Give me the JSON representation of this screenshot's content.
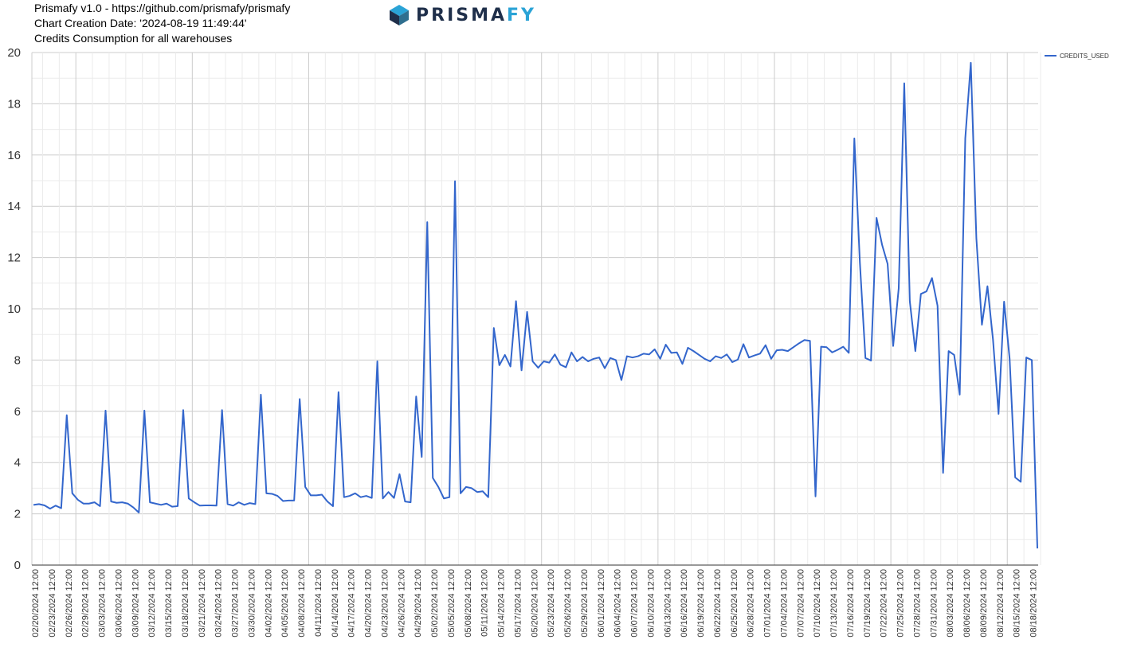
{
  "header": {
    "line1": "Prismafy v1.0 - https://github.com/prismafy/prismafy",
    "line2": "Chart Creation Date: '2024-08-19 11:49:44'",
    "line3": "Credits Consumption for all warehouses"
  },
  "logo": {
    "text_part1": "PRISMA",
    "text_part2": "FY",
    "color_dark": "#1f2f4a",
    "color_light": "#2aa3d6",
    "icon": "prism-cube-icon"
  },
  "chart_data": {
    "type": "line",
    "title": "Credits Consumption for all warehouses",
    "xlabel": "",
    "ylabel": "",
    "ylim": [
      0,
      20
    ],
    "y_ticks": [
      0,
      2,
      4,
      6,
      8,
      10,
      12,
      14,
      16,
      18,
      20
    ],
    "grid": true,
    "legend_position": "top-right",
    "line_color": "#3366cc",
    "x_tick_labels": [
      "02/20/2024 12:00",
      "02/23/2024 12:00",
      "02/26/2024 12:00",
      "02/29/2024 12:00",
      "03/03/2024 12:00",
      "03/06/2024 12:00",
      "03/09/2024 12:00",
      "03/12/2024 12:00",
      "03/15/2024 12:00",
      "03/18/2024 12:00",
      "03/21/2024 12:00",
      "03/24/2024 12:00",
      "03/27/2024 12:00",
      "03/30/2024 12:00",
      "04/02/2024 12:00",
      "04/05/2024 12:00",
      "04/08/2024 12:00",
      "04/11/2024 12:00",
      "04/14/2024 12:00",
      "04/17/2024 12:00",
      "04/20/2024 12:00",
      "04/23/2024 12:00",
      "04/26/2024 12:00",
      "04/29/2024 12:00",
      "05/02/2024 12:00",
      "05/05/2024 12:00",
      "05/08/2024 12:00",
      "05/11/2024 12:00",
      "05/14/2024 12:00",
      "05/17/2024 12:00",
      "05/20/2024 12:00",
      "05/23/2024 12:00",
      "05/26/2024 12:00",
      "05/29/2024 12:00",
      "06/01/2024 12:00",
      "06/04/2024 12:00",
      "06/07/2024 12:00",
      "06/10/2024 12:00",
      "06/13/2024 12:00",
      "06/16/2024 12:00",
      "06/19/2024 12:00",
      "06/22/2024 12:00",
      "06/25/2024 12:00",
      "06/28/2024 12:00",
      "07/01/2024 12:00",
      "07/04/2024 12:00",
      "07/07/2024 12:00",
      "07/10/2024 12:00",
      "07/13/2024 12:00",
      "07/16/2024 12:00",
      "07/19/2024 12:00",
      "07/22/2024 12:00",
      "07/25/2024 12:00",
      "07/28/2024 12:00",
      "07/31/2024 12:00",
      "08/03/2024 12:00",
      "08/06/2024 12:00",
      "08/09/2024 12:00",
      "08/12/2024 12:00",
      "08/15/2024 12:00",
      "08/18/2024 12:00"
    ],
    "series": [
      {
        "name": "CREDITS_USED",
        "values": [
          2.35,
          2.38,
          2.33,
          2.2,
          2.32,
          2.22,
          5.85,
          2.8,
          2.55,
          2.4,
          2.4,
          2.45,
          2.3,
          6.03,
          2.48,
          2.43,
          2.45,
          2.4,
          2.25,
          2.05,
          6.03,
          2.45,
          2.4,
          2.35,
          2.4,
          2.28,
          2.3,
          6.05,
          2.6,
          2.45,
          2.32,
          2.33,
          2.33,
          2.32,
          6.05,
          2.38,
          2.32,
          2.45,
          2.35,
          2.42,
          2.38,
          6.65,
          2.8,
          2.78,
          2.7,
          2.5,
          2.52,
          2.52,
          6.48,
          3.05,
          2.72,
          2.72,
          2.75,
          2.48,
          2.3,
          6.75,
          2.65,
          2.7,
          2.8,
          2.65,
          2.7,
          2.62,
          7.95,
          2.6,
          2.85,
          2.62,
          3.55,
          2.48,
          2.45,
          6.58,
          4.22,
          13.38,
          3.4,
          3.05,
          2.6,
          2.65,
          14.98,
          2.8,
          3.05,
          3.0,
          2.85,
          2.88,
          2.65,
          9.25,
          7.8,
          8.2,
          7.75,
          10.3,
          7.6,
          9.88,
          7.95,
          7.7,
          7.95,
          7.9,
          8.22,
          7.82,
          7.72,
          8.3,
          7.95,
          8.12,
          7.95,
          8.05,
          8.1,
          7.68,
          8.08,
          8.0,
          7.22,
          8.15,
          8.1,
          8.15,
          8.25,
          8.22,
          8.42,
          8.05,
          8.6,
          8.28,
          8.3,
          7.85,
          8.48,
          8.35,
          8.2,
          8.05,
          7.95,
          8.15,
          8.08,
          8.22,
          7.92,
          8.02,
          8.62,
          8.1,
          8.18,
          8.25,
          8.58,
          8.05,
          8.38,
          8.4,
          8.35,
          8.5,
          8.65,
          8.78,
          8.75,
          2.68,
          8.52,
          8.5,
          8.3,
          8.4,
          8.52,
          8.28,
          16.65,
          11.8,
          8.08,
          7.98,
          13.55,
          12.5,
          11.75,
          8.55,
          10.8,
          18.8,
          10.3,
          8.35,
          10.58,
          10.68,
          11.2,
          10.12,
          3.6,
          8.35,
          8.2,
          6.65,
          16.65,
          19.6,
          12.75,
          9.38,
          10.88,
          8.8,
          5.9,
          10.28,
          8.05,
          3.42,
          3.25,
          8.1,
          8.0,
          0.65
        ]
      }
    ]
  }
}
